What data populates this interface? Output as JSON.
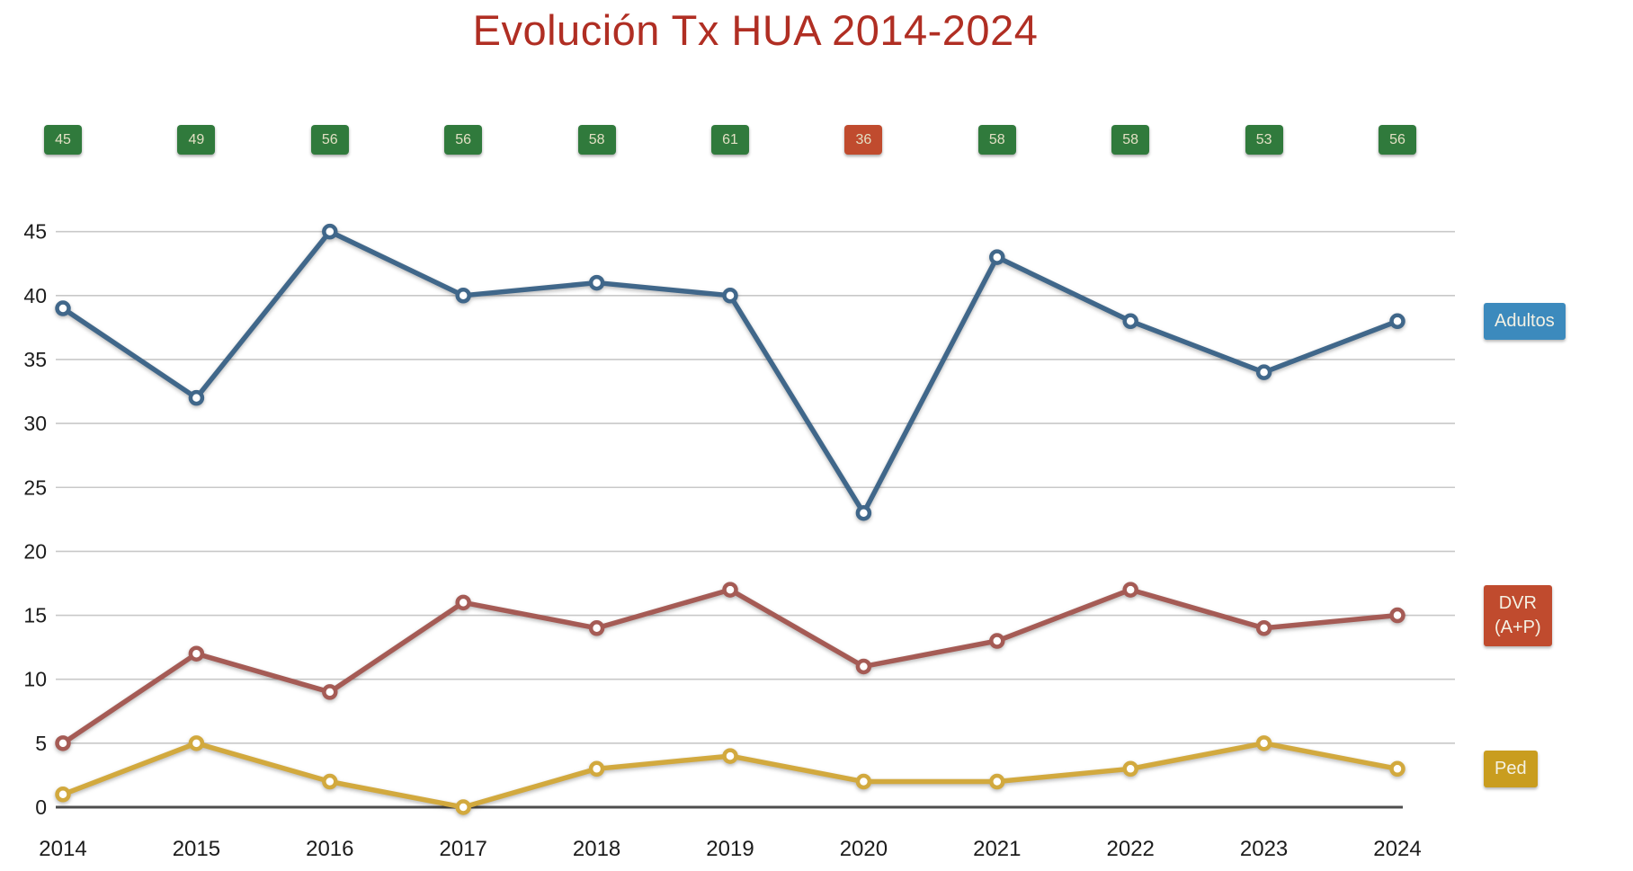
{
  "title": "Evolución Tx HUA 2014-2024",
  "colors": {
    "title_text": "#b02e23",
    "badge_green": "#307a3c",
    "badge_red": "#c04b2e",
    "badge_text": "#e3e0c4",
    "gridline": "#c8c8c8",
    "baseline": "#4d4d4d",
    "axis_text": "#1c1c1c",
    "chip_text": "#f4f1e4"
  },
  "chart_data": {
    "type": "line",
    "title": "Evolución Tx HUA 2014-2024",
    "categories": [
      "2014",
      "2015",
      "2016",
      "2017",
      "2018",
      "2019",
      "2020",
      "2021",
      "2022",
      "2023",
      "2024"
    ],
    "series": [
      {
        "name": "Adultos",
        "label_lines": [
          "Adultos"
        ],
        "values": [
          39,
          32,
          45,
          40,
          41,
          40,
          23,
          43,
          38,
          34,
          38
        ],
        "line_color": "#40678a",
        "label_bg": "#3c8abd"
      },
      {
        "name": "DVR (A+P)",
        "label_lines": [
          "DVR",
          "(A+P)"
        ],
        "values": [
          5,
          12,
          9,
          16,
          14,
          17,
          11,
          13,
          17,
          14,
          15
        ],
        "line_color": "#a55b55",
        "label_bg": "#c04b2e"
      },
      {
        "name": "Ped",
        "label_lines": [
          "Ped"
        ],
        "values": [
          1,
          5,
          2,
          0,
          3,
          4,
          2,
          2,
          3,
          5,
          3
        ],
        "line_color": "#d2a93e",
        "label_bg": "#c99d1f"
      }
    ],
    "totals": {
      "values": [
        45,
        49,
        56,
        56,
        58,
        61,
        36,
        58,
        58,
        53,
        56
      ],
      "highlight_index": 6,
      "highlight_year": "2020"
    },
    "ylim": [
      0,
      45
    ],
    "ytick_step": 5,
    "grid": true,
    "legend_position": "right-of-line-end"
  }
}
